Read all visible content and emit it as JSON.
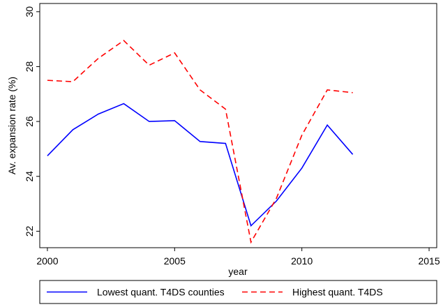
{
  "chart_data": {
    "type": "line",
    "x": [
      2000,
      2001,
      2002,
      2003,
      2004,
      2005,
      2006,
      2007,
      2008,
      2009,
      2010,
      2011,
      2012
    ],
    "series": [
      {
        "name": "Lowest quant. T4DS counties",
        "color": "#0000ff",
        "dash": "solid",
        "values": [
          24.75,
          25.7,
          26.27,
          26.65,
          26.0,
          26.03,
          25.27,
          25.2,
          22.2,
          23.1,
          24.3,
          25.87,
          24.8
        ]
      },
      {
        "name": "Highest quant. T4DS",
        "color": "#ff0000",
        "dash": "dashed",
        "values": [
          27.5,
          27.45,
          28.3,
          28.95,
          28.05,
          28.5,
          27.15,
          26.45,
          21.6,
          23.2,
          25.5,
          27.15,
          27.05
        ]
      }
    ],
    "xlabel": "year",
    "ylabel": "Av. expansion rate (%)",
    "xlim": [
      1999.7,
      2015.3
    ],
    "ylim": [
      21.4,
      30.3
    ],
    "xticks": [
      2000,
      2005,
      2010,
      2015
    ],
    "yticks": [
      22,
      24,
      26,
      28,
      30
    ],
    "legend": "bottom"
  }
}
